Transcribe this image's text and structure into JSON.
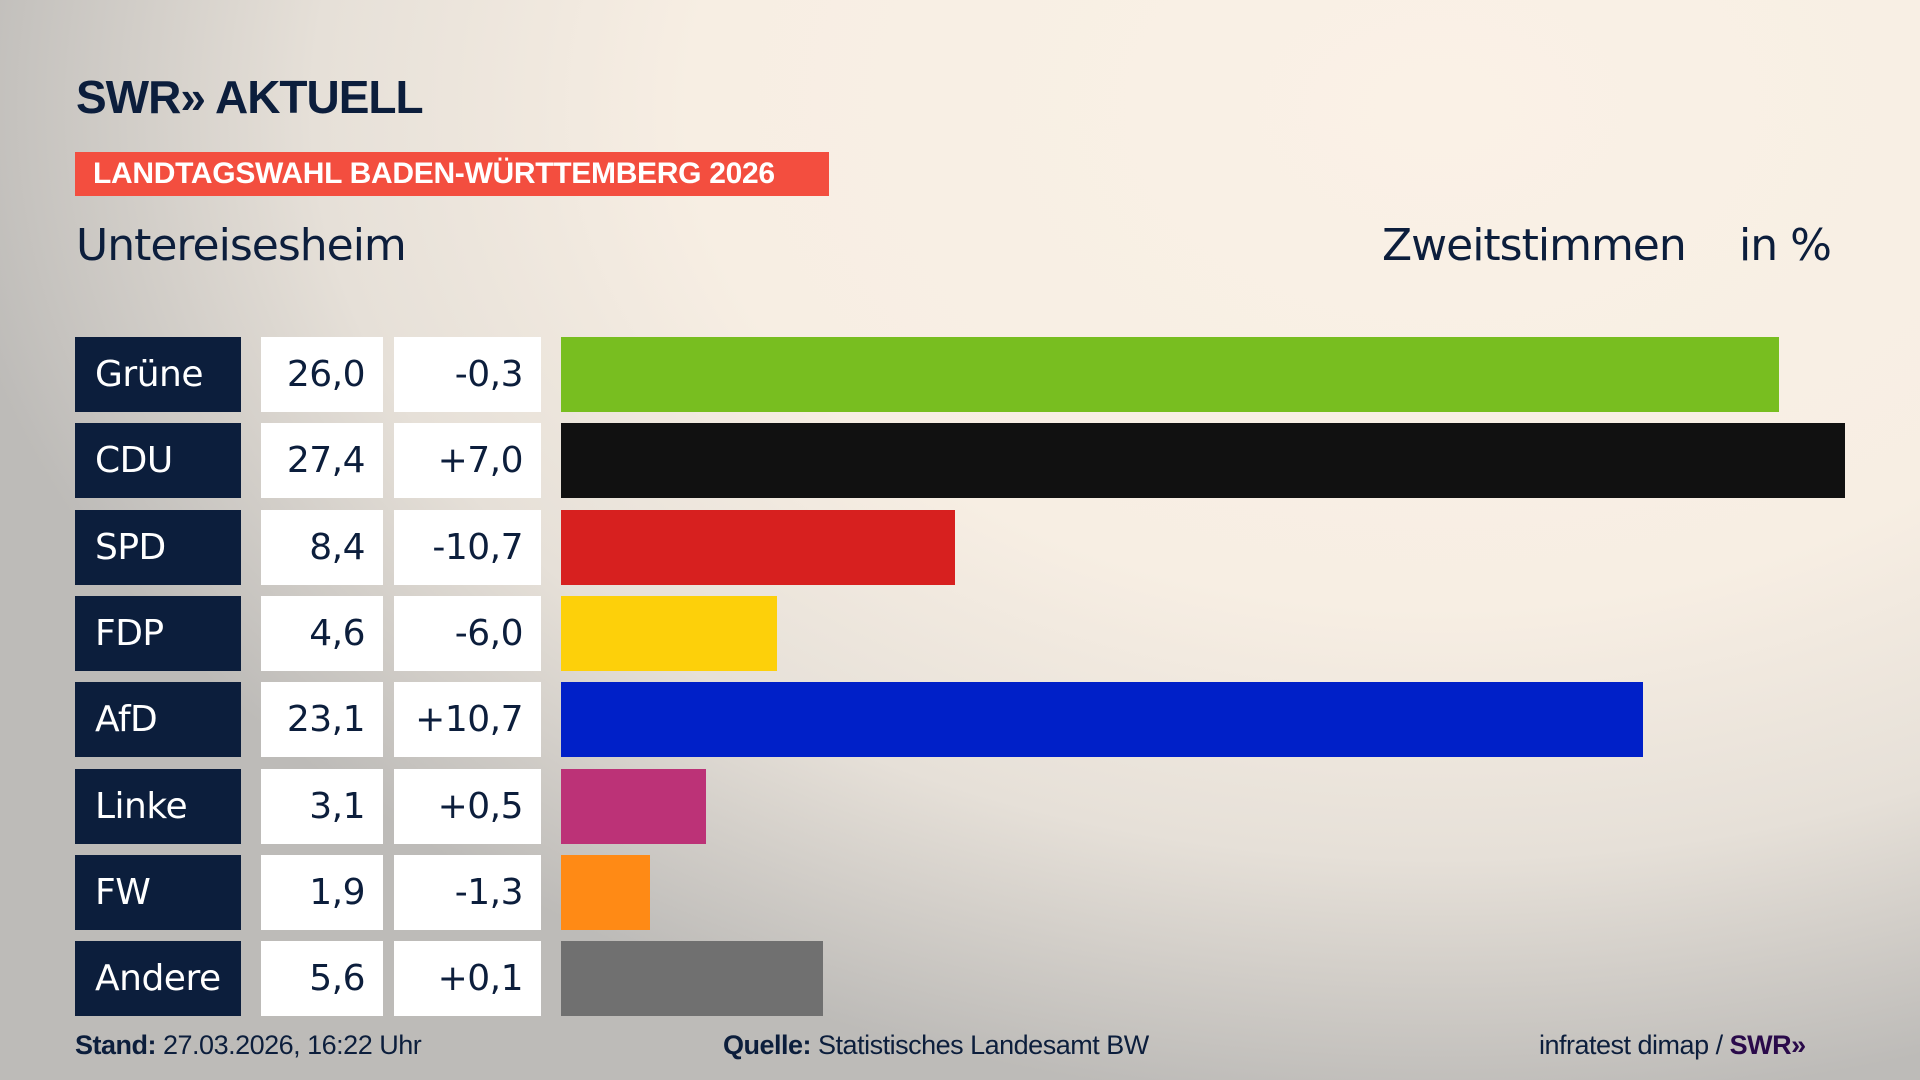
{
  "header": {
    "logo": "SWR» AKTUELL",
    "banner": "LANDTAGSWAHL BADEN-WÜRTTEMBERG 2026",
    "place": "Untereisesheim",
    "metric": "Zweitstimmen",
    "unit": "in %"
  },
  "chart_data": {
    "type": "bar",
    "orientation": "horizontal",
    "categories": [
      "Grüne",
      "CDU",
      "SPD",
      "FDP",
      "AfD",
      "Linke",
      "FW",
      "Andere"
    ],
    "values": [
      26.0,
      27.4,
      8.4,
      4.6,
      23.1,
      3.1,
      1.9,
      5.6
    ],
    "value_labels": [
      "26,0",
      "27,4",
      "8,4",
      "4,6",
      "23,1",
      "3,1",
      "1,9",
      "5,6"
    ],
    "change_labels": [
      "-0,3",
      "+7,0",
      "-10,7",
      "-6,0",
      "+10,7",
      "+0,5",
      "-1,3",
      "+0,1"
    ],
    "changes": [
      -0.3,
      7.0,
      -10.7,
      -6.0,
      10.7,
      0.5,
      -1.3,
      0.1
    ],
    "colors": [
      "#78be20",
      "#111111",
      "#d7201f",
      "#fdd00a",
      "#0020c8",
      "#bc3277",
      "#ff8a15",
      "#707070"
    ],
    "grid": false
  },
  "footer": {
    "stand_label": "Stand:",
    "stand_value": "27.03.2026, 16:22 Uhr",
    "source_label": "Quelle:",
    "source_value": "Statistisches Landesamt BW",
    "credit": "infratest dimap / ",
    "credit_logo": "SWR»"
  }
}
